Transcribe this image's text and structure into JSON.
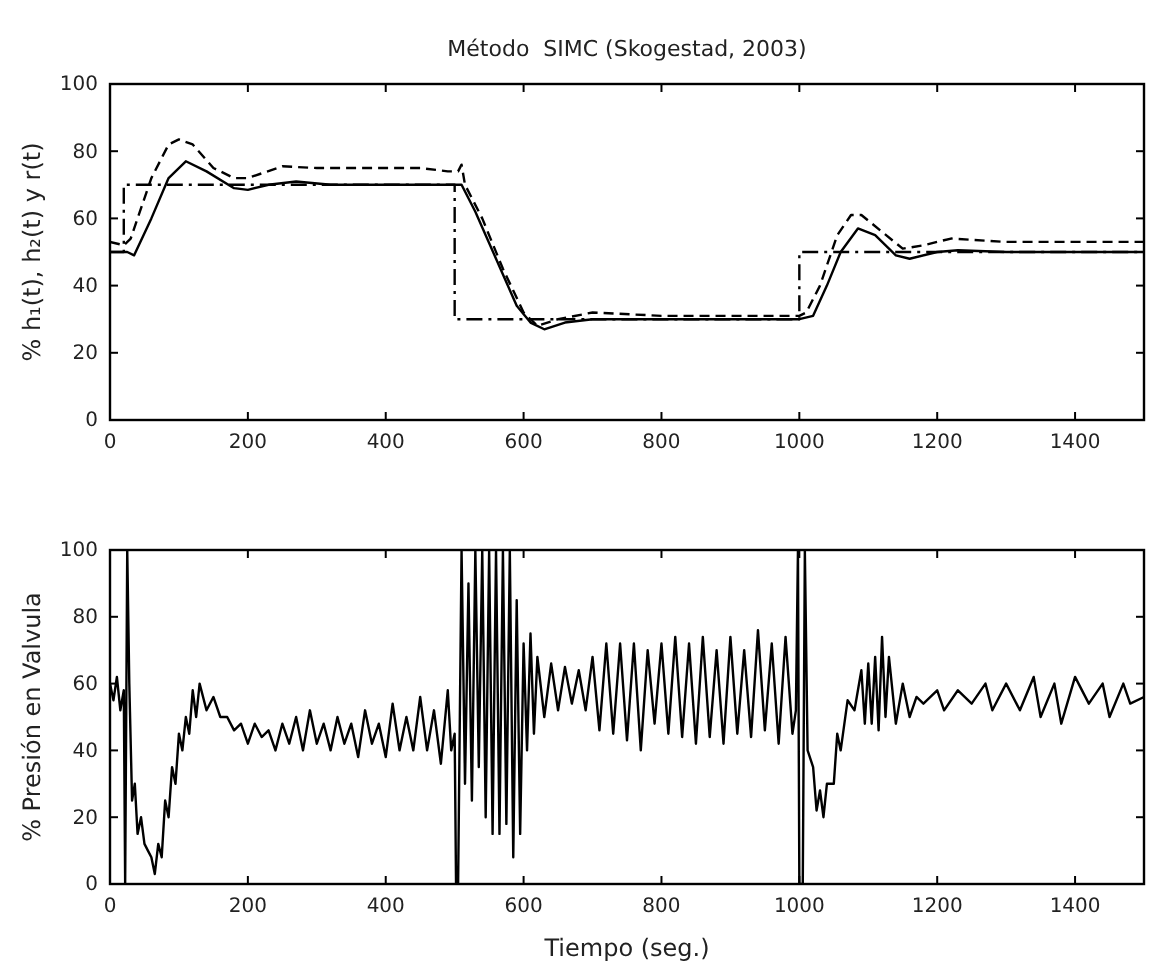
{
  "chart_data": [
    {
      "type": "line",
      "title": "Método  SIMC (Skogestad, 2003)",
      "ylabel": "% h₁(t), h₂(t) y r(t)",
      "xlim": [
        0,
        1500
      ],
      "ylim": [
        0,
        100
      ],
      "xticks": [
        0,
        200,
        400,
        600,
        800,
        1000,
        1200,
        1400
      ],
      "yticks": [
        0,
        20,
        40,
        60,
        80,
        100
      ],
      "grid": false,
      "series": [
        {
          "color": "#000000",
          "line_style": "solid",
          "x": [
            0,
            25,
            35,
            60,
            85,
            110,
            140,
            180,
            200,
            230,
            270,
            320,
            500,
            510,
            530,
            560,
            590,
            610,
            630,
            660,
            700,
            800,
            1000,
            1020,
            1040,
            1060,
            1085,
            1110,
            1140,
            1160,
            1200,
            1230,
            1300,
            1500
          ],
          "values": [
            50,
            50,
            49,
            60,
            72,
            77,
            74,
            69,
            68.5,
            70,
            71,
            70,
            70,
            70,
            62,
            48,
            34,
            29,
            27,
            29,
            30,
            30,
            30,
            31,
            40,
            50,
            57,
            55,
            49,
            48,
            50,
            50.5,
            50,
            50
          ]
        },
        {
          "color": "#000000",
          "line_style": "dashed",
          "x": [
            0,
            20,
            30,
            60,
            85,
            100,
            120,
            150,
            180,
            200,
            250,
            300,
            450,
            490,
            505,
            510,
            515,
            540,
            570,
            600,
            620,
            650,
            700,
            800,
            1000,
            1010,
            1030,
            1055,
            1075,
            1090,
            1120,
            1150,
            1180,
            1220,
            1300,
            1500
          ],
          "values": [
            53,
            52,
            54,
            72,
            82,
            83.5,
            82,
            75,
            72,
            72,
            75.5,
            75,
            75,
            74,
            74,
            76,
            70,
            60,
            45,
            32,
            28,
            30,
            32,
            31,
            31,
            32,
            40,
            55,
            61,
            61,
            56,
            51,
            52,
            54,
            53,
            53
          ]
        },
        {
          "color": "#000000",
          "line_style": "dashdot",
          "x": [
            0,
            20,
            20,
            500,
            500,
            1000,
            1000,
            1500
          ],
          "values": [
            50,
            50,
            70,
            70,
            30,
            30,
            50,
            50
          ]
        }
      ]
    },
    {
      "type": "line",
      "xlabel": "Tiempo (seg.)",
      "ylabel": "% Presión en Valvula",
      "xlim": [
        0,
        1500
      ],
      "ylim": [
        0,
        100
      ],
      "xticks": [
        0,
        200,
        400,
        600,
        800,
        1000,
        1200,
        1400
      ],
      "yticks": [
        0,
        20,
        40,
        60,
        80,
        100
      ],
      "grid": false,
      "series": [
        {
          "color": "#000000",
          "line_style": "solid",
          "x": [
            0,
            5,
            10,
            15,
            20,
            22,
            25,
            28,
            32,
            36,
            40,
            45,
            50,
            55,
            60,
            65,
            70,
            75,
            80,
            85,
            90,
            95,
            100,
            105,
            110,
            115,
            120,
            125,
            130,
            140,
            150,
            160,
            170,
            180,
            190,
            200,
            210,
            220,
            230,
            240,
            250,
            260,
            270,
            280,
            290,
            300,
            310,
            320,
            330,
            340,
            350,
            360,
            370,
            380,
            390,
            400,
            410,
            420,
            430,
            440,
            450,
            460,
            470,
            480,
            490,
            495,
            500,
            502,
            505,
            510,
            515,
            520,
            525,
            530,
            535,
            540,
            545,
            550,
            555,
            560,
            565,
            570,
            575,
            580,
            585,
            590,
            595,
            600,
            605,
            610,
            615,
            620,
            630,
            640,
            650,
            660,
            670,
            680,
            690,
            700,
            710,
            720,
            730,
            740,
            750,
            760,
            770,
            780,
            790,
            800,
            810,
            820,
            830,
            840,
            850,
            860,
            870,
            880,
            890,
            900,
            910,
            920,
            930,
            940,
            950,
            960,
            970,
            980,
            990,
            995,
            998,
            1000,
            1005,
            1008,
            1012,
            1020,
            1025,
            1030,
            1035,
            1040,
            1050,
            1055,
            1060,
            1070,
            1080,
            1090,
            1095,
            1100,
            1105,
            1110,
            1115,
            1120,
            1125,
            1130,
            1140,
            1150,
            1160,
            1170,
            1180,
            1200,
            1210,
            1230,
            1250,
            1270,
            1280,
            1300,
            1320,
            1340,
            1350,
            1370,
            1380,
            1400,
            1420,
            1440,
            1450,
            1470,
            1480,
            1500
          ],
          "values": [
            60,
            55,
            62,
            52,
            58,
            0,
            100,
            60,
            25,
            30,
            15,
            20,
            12,
            10,
            8,
            3,
            12,
            8,
            25,
            20,
            35,
            30,
            45,
            40,
            50,
            45,
            58,
            50,
            60,
            52,
            56,
            50,
            50,
            46,
            48,
            42,
            48,
            44,
            46,
            40,
            48,
            42,
            50,
            40,
            52,
            42,
            48,
            40,
            50,
            42,
            48,
            38,
            52,
            42,
            48,
            38,
            54,
            40,
            50,
            40,
            56,
            40,
            52,
            36,
            58,
            40,
            45,
            0,
            0,
            100,
            30,
            90,
            25,
            100,
            35,
            100,
            20,
            100,
            15,
            100,
            15,
            100,
            18,
            100,
            8,
            85,
            15,
            72,
            40,
            75,
            45,
            68,
            50,
            66,
            52,
            65,
            54,
            64,
            52,
            68,
            46,
            72,
            45,
            72,
            43,
            72,
            40,
            70,
            48,
            72,
            45,
            74,
            44,
            72,
            42,
            74,
            44,
            70,
            42,
            74,
            45,
            70,
            44,
            76,
            46,
            72,
            42,
            74,
            45,
            52,
            100,
            0,
            0,
            100,
            40,
            35,
            22,
            28,
            20,
            30,
            30,
            45,
            40,
            55,
            52,
            64,
            48,
            66,
            48,
            68,
            46,
            74,
            50,
            68,
            48,
            60,
            50,
            56,
            54,
            58,
            52,
            58,
            54,
            60,
            52,
            60,
            52,
            62,
            50,
            60,
            48,
            62,
            54,
            60,
            50,
            60,
            54,
            56
          ]
        }
      ]
    }
  ]
}
